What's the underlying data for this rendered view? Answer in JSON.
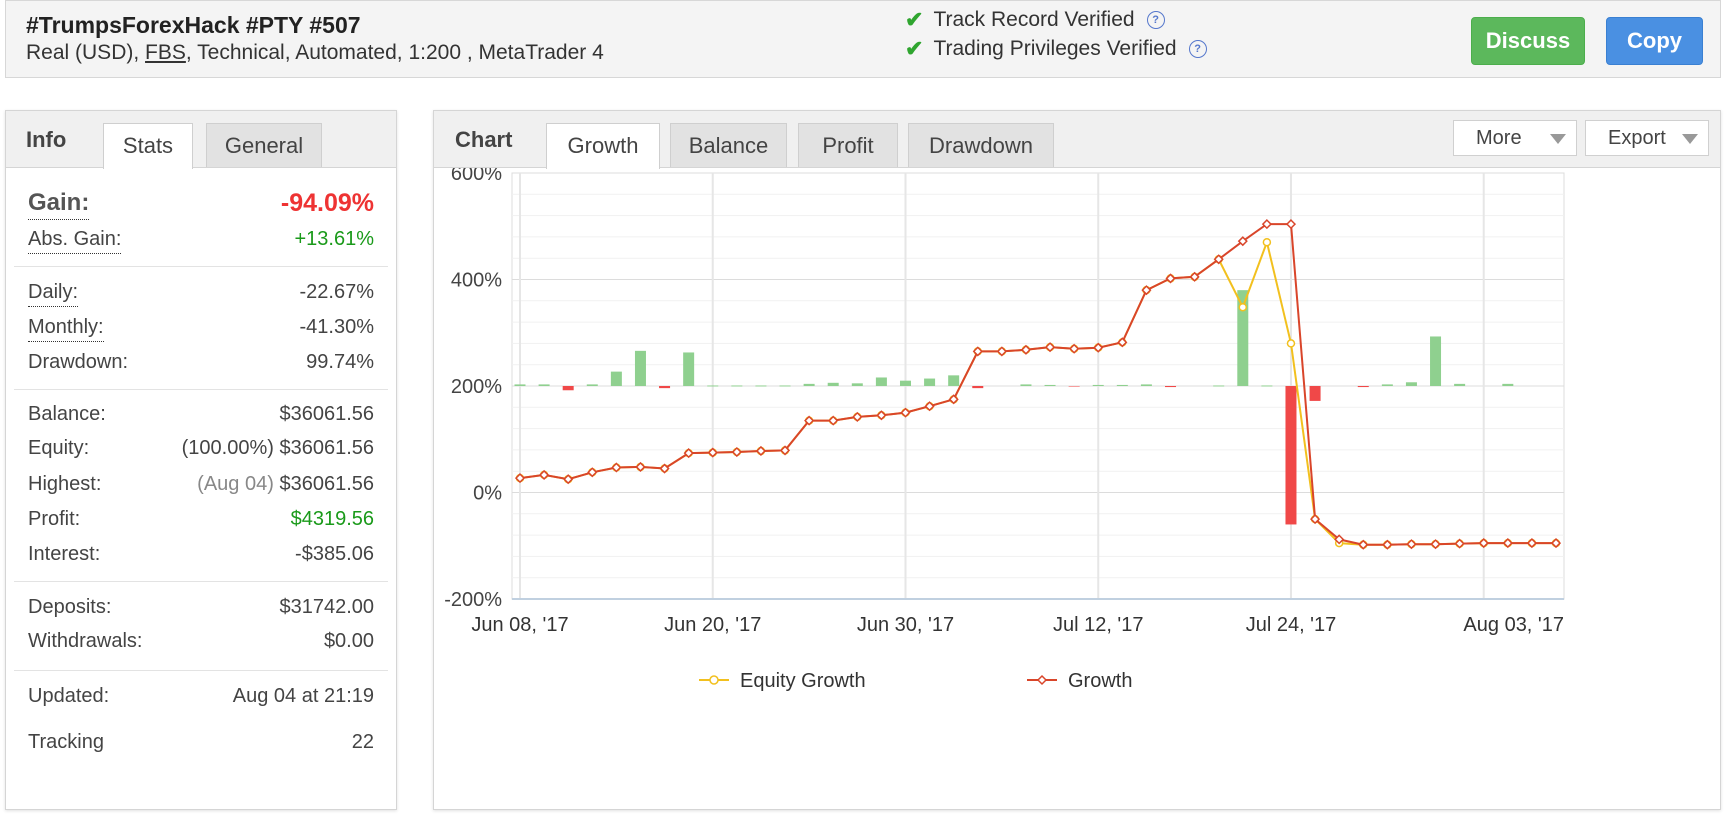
{
  "header": {
    "title": "#TrumpsForexHack #PTY #507",
    "sub_prefix": "Real (USD), ",
    "broker": "FBS",
    "sub_suffix": ", Technical, Automated, 1:200 , MetaTrader 4",
    "verifications": [
      "Track Record Verified",
      "Trading Privileges Verified"
    ],
    "discuss_label": "Discuss",
    "copy_label": "Copy"
  },
  "info_panel": {
    "title": "Info",
    "tabs": [
      "Stats",
      "General"
    ],
    "gain_label": "Gain:",
    "gain_value": "-94.09%",
    "abs_gain_label": "Abs. Gain:",
    "abs_gain_value": "+13.61%",
    "daily_label": "Daily:",
    "daily_value": "-22.67%",
    "monthly_label": "Monthly:",
    "monthly_value": "-41.30%",
    "drawdown_label": "Drawdown:",
    "drawdown_value": "99.74%",
    "balance_label": "Balance:",
    "balance_value": "$36061.56",
    "equity_label": "Equity:",
    "equity_pct": "(100.00%)",
    "equity_value": "$36061.56",
    "highest_label": "Highest:",
    "highest_date": "(Aug 04)",
    "highest_value": "$36061.56",
    "profit_label": "Profit:",
    "profit_value": "$4319.56",
    "interest_label": "Interest:",
    "interest_value": "-$385.06",
    "deposits_label": "Deposits:",
    "deposits_value": "$31742.00",
    "withdrawals_label": "Withdrawals:",
    "withdrawals_value": "$0.00",
    "updated_label": "Updated:",
    "updated_value": "Aug 04 at 21:19",
    "tracking_label": "Tracking",
    "tracking_value": "22"
  },
  "chart_panel": {
    "title": "Chart",
    "tabs": [
      "Growth",
      "Balance",
      "Profit",
      "Drawdown"
    ],
    "more_label": "More",
    "export_label": "Export"
  },
  "chart_data": {
    "type": "line",
    "y_ticks": [
      "600%",
      "400%",
      "200%",
      "0%",
      "-200%"
    ],
    "ylim": [
      -200,
      600
    ],
    "x_ticks": [
      "Jun 08, '17",
      "Jun 20, '17",
      "Jun 30, '17",
      "Jul 12, '17",
      "Jul 24, '17",
      "Aug 03, '17"
    ],
    "colors": {
      "equity": "#f2c01e",
      "growth": "#d9452a",
      "bar_pos": "#8fd08f",
      "bar_neg": "#f04848"
    },
    "series": [
      {
        "name": "Equity Growth",
        "values": [
          27,
          33,
          25,
          38,
          47,
          48,
          45,
          74,
          75,
          76,
          78,
          79,
          135,
          135,
          142,
          145,
          150,
          162,
          175,
          265,
          265,
          268,
          273,
          270,
          272,
          282,
          380,
          402,
          405,
          438,
          348,
          470,
          280,
          -50,
          -95,
          -98,
          -98,
          -97,
          -97,
          -96,
          -95,
          -95,
          -95,
          -95
        ]
      },
      {
        "name": "Growth",
        "values": [
          27,
          33,
          25,
          38,
          47,
          48,
          45,
          74,
          75,
          76,
          78,
          79,
          135,
          135,
          142,
          145,
          150,
          162,
          175,
          265,
          265,
          268,
          273,
          270,
          272,
          282,
          380,
          402,
          405,
          438,
          472,
          504,
          504,
          -50,
          -88,
          -98,
          -98,
          -97,
          -97,
          -96,
          -95,
          -95,
          -95,
          -95
        ]
      }
    ],
    "bars": [
      {
        "x": 0,
        "value": 3
      },
      {
        "x": 1,
        "value": 3
      },
      {
        "x": 2,
        "value": -8
      },
      {
        "x": 3,
        "value": 3
      },
      {
        "x": 4,
        "value": 27
      },
      {
        "x": 5,
        "value": 66
      },
      {
        "x": 6,
        "value": -4
      },
      {
        "x": 7,
        "value": 63
      },
      {
        "x": 8,
        "value": 1
      },
      {
        "x": 9,
        "value": 1
      },
      {
        "x": 10,
        "value": 1
      },
      {
        "x": 11,
        "value": 1
      },
      {
        "x": 12,
        "value": 4
      },
      {
        "x": 13,
        "value": 6
      },
      {
        "x": 14,
        "value": 5
      },
      {
        "x": 15,
        "value": 16
      },
      {
        "x": 16,
        "value": 10
      },
      {
        "x": 17,
        "value": 14
      },
      {
        "x": 18,
        "value": 20
      },
      {
        "x": 19,
        "value": -4
      },
      {
        "x": 21,
        "value": 3
      },
      {
        "x": 22,
        "value": 2
      },
      {
        "x": 23,
        "value": -1
      },
      {
        "x": 24,
        "value": 2
      },
      {
        "x": 25,
        "value": 2
      },
      {
        "x": 26,
        "value": 3
      },
      {
        "x": 27,
        "value": -2
      },
      {
        "x": 29,
        "value": 1
      },
      {
        "x": 30,
        "value": 180
      },
      {
        "x": 31,
        "value": 1
      },
      {
        "x": 32,
        "value": -260
      },
      {
        "x": 33,
        "value": -28
      },
      {
        "x": 35,
        "value": -2
      },
      {
        "x": 36,
        "value": 3
      },
      {
        "x": 37,
        "value": 7
      },
      {
        "x": 38,
        "value": 93
      },
      {
        "x": 39,
        "value": 4
      },
      {
        "x": 41,
        "value": 4
      }
    ]
  }
}
